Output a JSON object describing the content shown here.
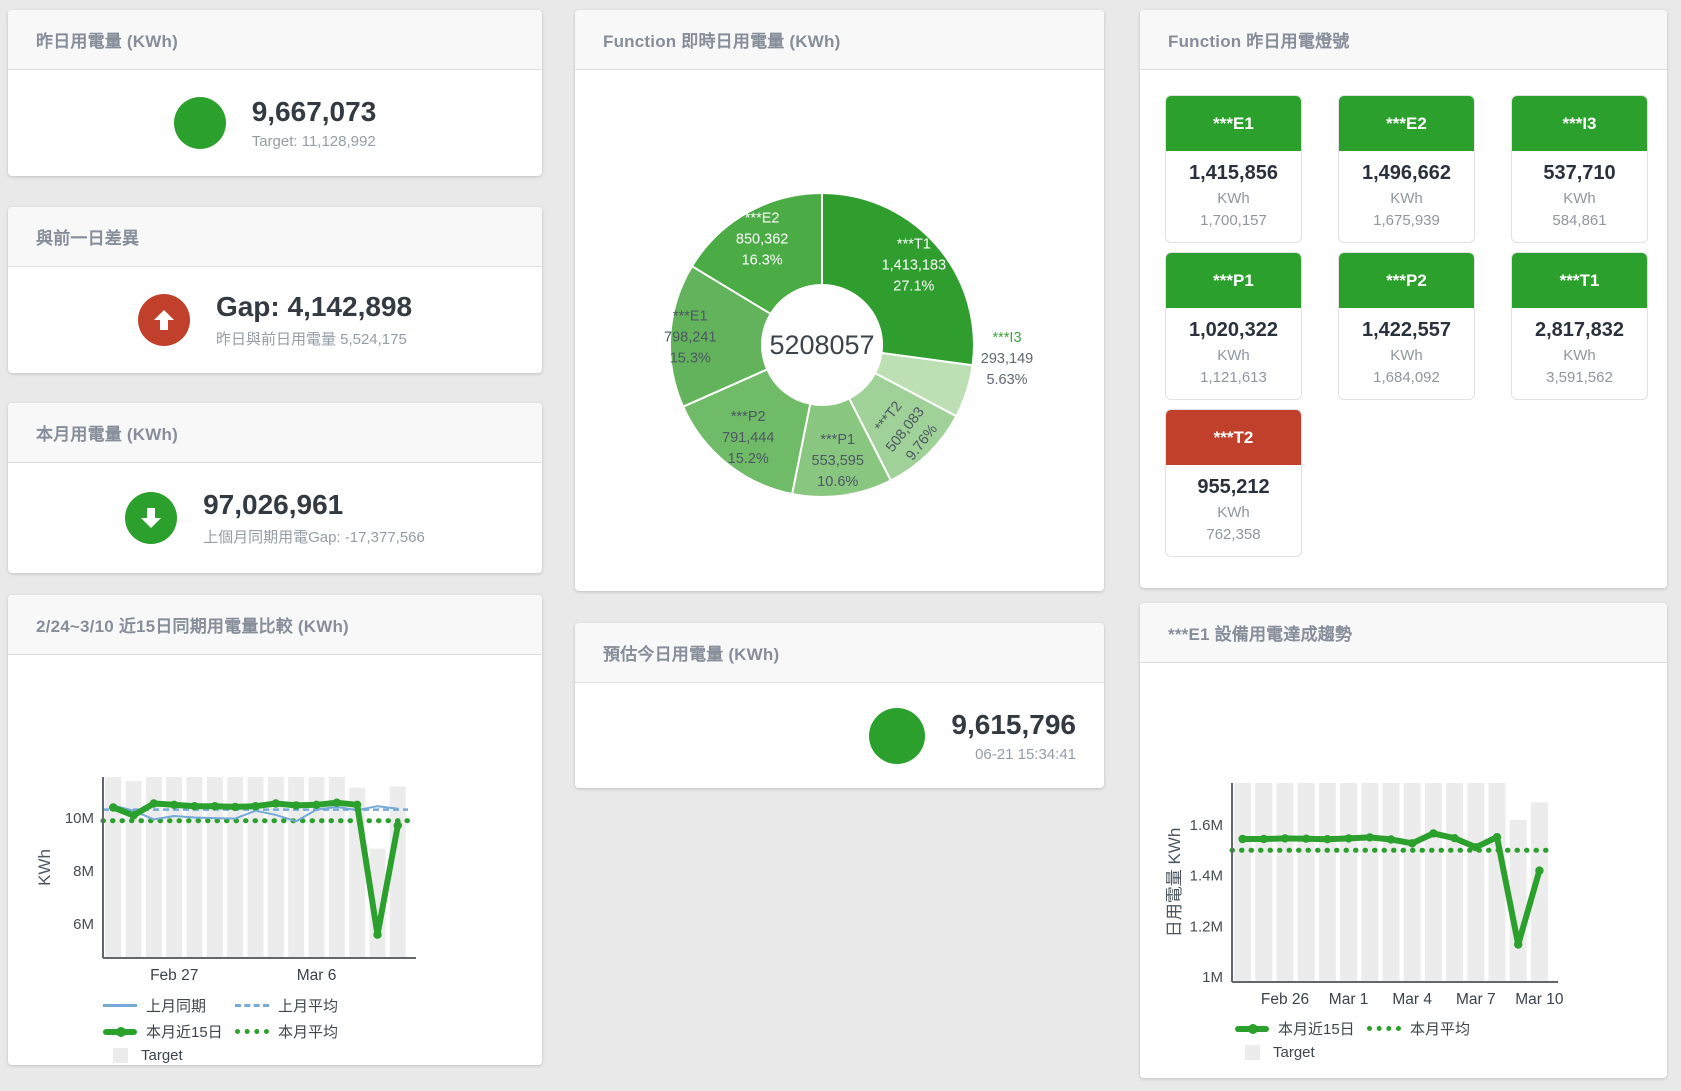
{
  "colors": {
    "accent_green": "#2ca02c",
    "accent_red": "#c1402b",
    "line_blue": "#74a9d8",
    "target_bar_gray": "#ececec",
    "panel_title_gray": "#878e9a"
  },
  "panels": {
    "yesterday": {
      "title": "昨日用電量 (KWh)",
      "value": "9,667,073",
      "sub": "Target: 11,128,992"
    },
    "day_gap": {
      "title": "與前一日差異",
      "value": "Gap: 4,142,898",
      "sub": "昨日與前日用電量 5,524,175"
    },
    "month": {
      "title": "本月用電量 (KWh)",
      "value": "97,026,961",
      "sub": "上個月同期用電Gap: -17,377,566"
    },
    "estimate": {
      "title": "預估今日用電量 (KWh)",
      "value": "9,615,796",
      "sub": "06-21 15:34:41"
    },
    "donut_panel": {
      "title": "Function 即時日用電量 (KWh)"
    },
    "comparison_panel": {
      "title": "2/24~3/10 近15日同期用電量比較 (KWh)"
    },
    "trend_panel": {
      "title": "***E1 設備用電達成趨勢"
    },
    "lights": {
      "title": "Function 昨日用電燈號",
      "unit": "KWh",
      "tiles": [
        {
          "name": "***E1",
          "value": "1,415,856",
          "target": "1,700,157",
          "status": "green"
        },
        {
          "name": "***E2",
          "value": "1,496,662",
          "target": "1,675,939",
          "status": "green"
        },
        {
          "name": "***I3",
          "value": "537,710",
          "target": "584,861",
          "status": "green"
        },
        {
          "name": "***P1",
          "value": "1,020,322",
          "target": "1,121,613",
          "status": "green"
        },
        {
          "name": "***P2",
          "value": "1,422,557",
          "target": "1,684,092",
          "status": "green"
        },
        {
          "name": "***T1",
          "value": "2,817,832",
          "target": "3,591,562",
          "status": "green"
        },
        {
          "name": "***T2",
          "value": "955,212",
          "target": "762,358",
          "status": "red"
        }
      ]
    }
  },
  "chart_data": [
    {
      "id": "donut",
      "type": "pie",
      "title": "Function 即時日用電量 (KWh)",
      "center_total": "5208057",
      "slices": [
        {
          "name": "***T1",
          "value": 1413183,
          "display": "1,413,183",
          "percent": "27.1%",
          "color": "#2f9e2f",
          "label": {
            "r": 122,
            "color": "#ffffff"
          }
        },
        {
          "name": "***I3",
          "value": 293149,
          "display": "293,149",
          "percent": "5.63%",
          "color": "#bce0b4",
          "label": {
            "outside": true,
            "x": 432,
            "y": 288,
            "name_color": "#3fa33f",
            "color": "#5e6872"
          }
        },
        {
          "name": "***T2",
          "value": 508083,
          "display": "508,083",
          "percent": "9.76%",
          "color": "#a0d198",
          "label": {
            "r": 118,
            "color": "#4d5862",
            "rotate": -52
          }
        },
        {
          "name": "***P1",
          "value": 553595,
          "display": "553,595",
          "percent": "10.6%",
          "color": "#89c781",
          "label": {
            "r": 116,
            "color": "#4d5862"
          }
        },
        {
          "name": "***P2",
          "value": 791444,
          "display": "791,444",
          "percent": "15.2%",
          "color": "#70bb68",
          "label": {
            "r": 118,
            "color": "#4d5862"
          }
        },
        {
          "name": "***E1",
          "value": 798241,
          "display": "798,241",
          "percent": "15.3%",
          "color": "#62b35b",
          "label": {
            "r": 132,
            "color": "#4d5862"
          }
        },
        {
          "name": "***E2",
          "value": 850362,
          "display": "850,362",
          "percent": "16.3%",
          "color": "#4bab45",
          "label": {
            "r": 122,
            "color": "#ffffff"
          }
        }
      ]
    },
    {
      "id": "comparison",
      "type": "line",
      "title": "2/24~3/10 近15日同期用電量比較 (KWh)",
      "unit": "M KWh",
      "ylabel": "KWh",
      "ylim": [
        4.72,
        11.55
      ],
      "categories": [
        "2/24",
        "2/25",
        "2/26",
        "2/27",
        "2/28",
        "3/1",
        "3/2",
        "3/3",
        "3/4",
        "3/5",
        "3/6",
        "3/7",
        "3/8",
        "3/9",
        "3/10"
      ],
      "target_name": "Target",
      "target": [
        11.55,
        11.4,
        11.55,
        11.55,
        11.55,
        11.55,
        11.55,
        11.55,
        11.55,
        11.55,
        11.55,
        11.55,
        11.15,
        8.85,
        11.2
      ],
      "series": [
        {
          "name": "上月同期",
          "color": "#74a9d8",
          "width": 2,
          "dots": false,
          "values": [
            10.48,
            10.28,
            9.95,
            10.08,
            10.02,
            10.0,
            9.98,
            10.28,
            10.12,
            9.88,
            10.32,
            10.42,
            10.3,
            10.45,
            10.35
          ]
        },
        {
          "name": "本月近15日",
          "color": "#2ca02c",
          "width": 6,
          "dots": true,
          "values": [
            10.4,
            10.1,
            10.55,
            10.5,
            10.45,
            10.45,
            10.42,
            10.45,
            10.55,
            10.48,
            10.5,
            10.58,
            10.5,
            5.6,
            9.72
          ]
        }
      ],
      "averages": [
        {
          "name": "上月平均",
          "value": 10.32,
          "color": "#74a9d8",
          "style": "dashed"
        },
        {
          "name": "本月平均",
          "value": 9.9,
          "color": "#2ca02c",
          "style": "dotted"
        }
      ],
      "yticks": [
        {
          "v": 6,
          "label": "6M"
        },
        {
          "v": 8,
          "label": "8M"
        },
        {
          "v": 10,
          "label": "10M"
        }
      ],
      "xticks": [
        {
          "index": 3,
          "label": "Feb 27"
        },
        {
          "index": 10,
          "label": "Mar 6"
        }
      ],
      "legend_rows": [
        [
          {
            "key": "prev-period",
            "label": "上月同期",
            "swatch": "solid-blue"
          },
          {
            "key": "prev-avg",
            "label": "上月平均",
            "swatch": "dashed-blue"
          }
        ],
        [
          {
            "key": "month-15d",
            "label": "本月近15日",
            "swatch": "thick-green"
          },
          {
            "key": "month-avg",
            "label": "本月平均",
            "swatch": "dotted-green"
          }
        ],
        [
          {
            "key": "target",
            "label": "Target",
            "swatch": "square-gray"
          }
        ]
      ]
    },
    {
      "id": "trend",
      "type": "line",
      "title": "***E1 設備用電達成趨勢",
      "unit": "M KWh",
      "ylabel": "日用電量 KWh",
      "ylim": [
        0.98,
        1.766
      ],
      "categories": [
        "2/24",
        "2/25",
        "2/26",
        "2/27",
        "2/28",
        "3/1",
        "3/2",
        "3/3",
        "3/4",
        "3/5",
        "3/6",
        "3/7",
        "3/8",
        "3/9",
        "3/10"
      ],
      "target_name": "Target",
      "target": [
        1.766,
        1.766,
        1.766,
        1.766,
        1.766,
        1.766,
        1.766,
        1.766,
        1.766,
        1.766,
        1.766,
        1.766,
        1.766,
        1.62,
        1.69
      ],
      "series": [
        {
          "name": "本月近15日",
          "color": "#2ca02c",
          "width": 6,
          "dots": true,
          "values": [
            1.545,
            1.545,
            1.547,
            1.546,
            1.544,
            1.547,
            1.551,
            1.543,
            1.528,
            1.567,
            1.548,
            1.512,
            1.552,
            1.128,
            1.42
          ]
        }
      ],
      "averages": [
        {
          "name": "本月平均",
          "value": 1.5,
          "color": "#2ca02c",
          "style": "dotted"
        }
      ],
      "yticks": [
        {
          "v": 1,
          "label": "1M"
        },
        {
          "v": 1.2,
          "label": "1.2M"
        },
        {
          "v": 1.4,
          "label": "1.4M"
        },
        {
          "v": 1.6,
          "label": "1.6M"
        }
      ],
      "xticks": [
        {
          "index": 2,
          "label": "Feb 26"
        },
        {
          "index": 5,
          "label": "Mar 1"
        },
        {
          "index": 8,
          "label": "Mar 4"
        },
        {
          "index": 11,
          "label": "Mar 7"
        },
        {
          "index": 14,
          "label": "Mar 10"
        }
      ],
      "legend_rows": [
        [
          {
            "key": "month-15d",
            "label": "本月近15日",
            "swatch": "thick-green"
          },
          {
            "key": "month-avg",
            "label": "本月平均",
            "swatch": "dotted-green"
          }
        ],
        [
          {
            "key": "target",
            "label": "Target",
            "swatch": "square-gray"
          }
        ]
      ]
    }
  ]
}
